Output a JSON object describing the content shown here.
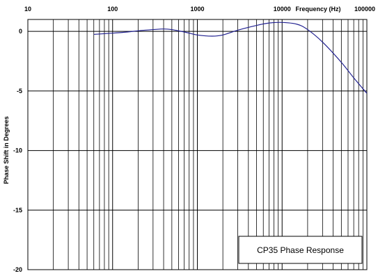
{
  "chart_data": {
    "type": "line",
    "title": "CP35 Phase Response",
    "xlabel": "Frequency (Hz)",
    "ylabel": "Phase Shift in Degrees",
    "x_scale": "log",
    "xlim": [
      10,
      100000
    ],
    "ylim": [
      -20,
      1
    ],
    "x_tick_labels": [
      "10",
      "100",
      "1000",
      "10000",
      "100000"
    ],
    "y_tick_labels": [
      "0",
      "-5",
      "-10",
      "-15",
      "-20"
    ],
    "y_ticks": [
      0,
      -5,
      -10,
      -15,
      -20
    ],
    "grid": true,
    "legend_position": "bottom-right",
    "colors": {
      "line": "#1f1f8f",
      "grid": "#000000",
      "background": "#ffffff"
    },
    "series": [
      {
        "x": [
          60,
          100,
          150,
          200,
          300,
          400,
          500,
          700,
          1000,
          1500,
          2000,
          3000,
          5000,
          7000,
          10000,
          15000,
          20000,
          30000,
          50000,
          70000,
          100000
        ],
        "y": [
          -0.25,
          -0.15,
          -0.05,
          0.05,
          0.15,
          0.2,
          0.15,
          -0.05,
          -0.3,
          -0.4,
          -0.3,
          0.1,
          0.5,
          0.7,
          0.75,
          0.6,
          0.15,
          -0.9,
          -2.6,
          -3.9,
          -5.2
        ]
      }
    ]
  }
}
